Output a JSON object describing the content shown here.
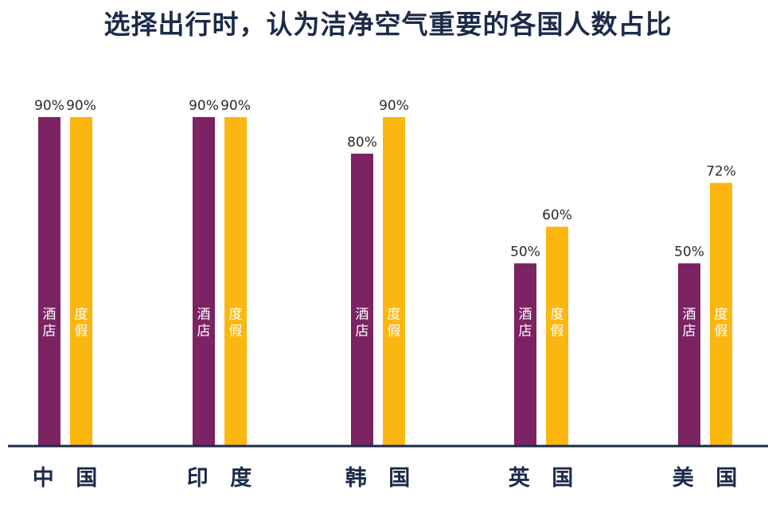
{
  "title": "选择出行时，认为洁净空气重要的各国人数占比",
  "chart_data": {
    "type": "bar",
    "title": "选择出行时，认为洁净空气重要的各国人数占比",
    "categories": [
      "中国",
      "印度",
      "韩国",
      "英国",
      "美国"
    ],
    "series": [
      {
        "name": "酒店",
        "values": [
          90,
          90,
          80,
          50,
          50
        ],
        "value_labels": [
          "90%",
          "90%",
          "80%",
          "50%",
          "50%"
        ],
        "color": "#7b2363"
      },
      {
        "name": "度假",
        "values": [
          90,
          90,
          90,
          60,
          72
        ],
        "value_labels": [
          "90%",
          "90%",
          "90%",
          "60%",
          "72%"
        ],
        "color": "#fbb710"
      }
    ],
    "category_labels": [
      "中 国",
      "印 度",
      "韩 国",
      "英 国",
      "美 国"
    ],
    "ylim": [
      0,
      90
    ],
    "grid": false,
    "legend": "none (series names printed inside bars)",
    "axis_color": "#1c2b4a"
  }
}
